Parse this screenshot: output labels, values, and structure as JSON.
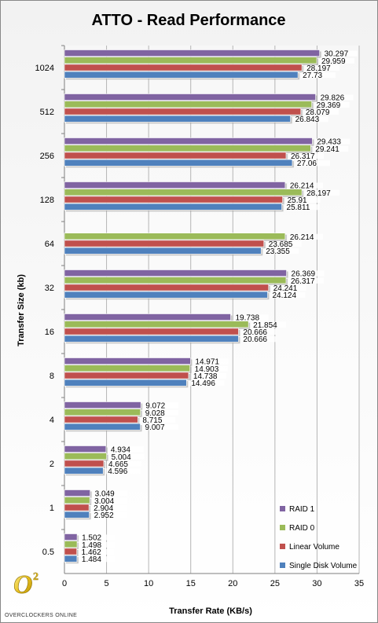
{
  "chart_data": {
    "type": "bar",
    "orientation": "horizontal",
    "title": "ATTO - Read Performance",
    "xlabel": "Transfer Rate (KB/s)",
    "ylabel": "Transfer Size (kb)",
    "xlim": [
      0,
      35
    ],
    "xticks": [
      "0",
      "5",
      "10",
      "15",
      "20",
      "25",
      "30",
      "35"
    ],
    "grid": "vertical",
    "legend_position": "bottom-right",
    "categories": [
      "1024",
      "512",
      "256",
      "128",
      "64",
      "32",
      "16",
      "8",
      "4",
      "2",
      "1",
      "0.5"
    ],
    "series": [
      {
        "name": "RAID 1",
        "color": "#8064a2",
        "values": [
          30.297,
          29.826,
          29.433,
          26.214,
          null,
          26.369,
          19.738,
          14.971,
          9.072,
          4.934,
          3.049,
          1.502
        ],
        "labels": [
          "30.297",
          "29.826",
          "29.433",
          "26.214",
          "",
          "26.369",
          "19.738",
          "14.971",
          "9.072",
          "4.934",
          "3.049",
          "1.502"
        ]
      },
      {
        "name": "RAID 0",
        "color": "#9bbb59",
        "values": [
          29.959,
          29.369,
          29.241,
          28.197,
          26.214,
          26.317,
          21.854,
          14.903,
          9.028,
          5.004,
          3.004,
          1.498
        ],
        "labels": [
          "29.959",
          "29.369",
          "29.241",
          "28.197",
          "26.214",
          "26.317",
          "21.854",
          "14.903",
          "9.028",
          "5.004",
          "3.004",
          "1.498"
        ]
      },
      {
        "name": "Linear Volume",
        "color": "#c0504d",
        "values": [
          28.197,
          28.079,
          26.317,
          25.91,
          23.685,
          24.241,
          20.666,
          14.738,
          8.715,
          4.665,
          2.904,
          1.462
        ],
        "labels": [
          "28.197",
          "28.079",
          "26.317",
          "25.91",
          "23.685",
          "24.241",
          "20.666",
          "14.738",
          "8.715",
          "4.665",
          "2.904",
          "1.462"
        ]
      },
      {
        "name": "Single Disk Volume",
        "color": "#4f81bd",
        "values": [
          27.73,
          26.843,
          27.06,
          25.811,
          23.355,
          24.124,
          20.666,
          14.496,
          9.007,
          4.596,
          2.952,
          1.484
        ],
        "labels": [
          "27.73",
          "26.843",
          "27.06",
          "25.811",
          "23.355",
          "24.124",
          "20.666",
          "14.496",
          "9.007",
          "4.596",
          "2.952",
          "1.484"
        ]
      }
    ]
  },
  "logo": {
    "mark": "O",
    "superscript": "2",
    "text": "OVERCLOCKERS ONLINE"
  }
}
